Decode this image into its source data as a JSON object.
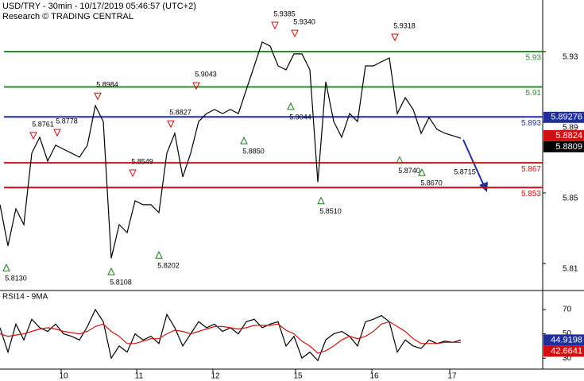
{
  "chart_data": [
    {
      "type": "line",
      "title": "USD/TRY - 30min - 10/17/2019 05:46:57 (UTC+2)",
      "subtitle": "Research © TRADING CENTRAL",
      "x": [
        0,
        5,
        10,
        15,
        20,
        25,
        30,
        35,
        40,
        45,
        50,
        55,
        60,
        65,
        70,
        75,
        80,
        85,
        90,
        95,
        100,
        105,
        110,
        115,
        120,
        125,
        130,
        135,
        140,
        145,
        150,
        155,
        160,
        165,
        170,
        175,
        180,
        185,
        190,
        195,
        200,
        205,
        210,
        215,
        220,
        225,
        230,
        235,
        240,
        245,
        250,
        255,
        260,
        265,
        270,
        275,
        280,
        285,
        290
      ],
      "values": [
        5.8433,
        5.82,
        5.841,
        5.832,
        5.8725,
        5.8815,
        5.868,
        5.877,
        5.8747,
        5.8725,
        5.8702,
        5.877,
        5.8994,
        5.8904,
        5.813,
        5.832,
        5.8275,
        5.8455,
        5.8433,
        5.8433,
        5.8388,
        5.8725,
        5.8837,
        5.859,
        5.8725,
        5.8904,
        5.8949,
        5.8972,
        5.8949,
        5.8972,
        5.8949,
        5.9084,
        5.9219,
        5.9354,
        5.9331,
        5.9219,
        5.9197,
        5.9287,
        5.9287,
        5.9197,
        5.856,
        5.9129,
        5.8904,
        5.8815,
        5.8949,
        5.8904,
        5.9219,
        5.9219,
        5.9242,
        5.9264,
        5.8949,
        5.9039,
        5.8972,
        5.8837,
        5.8927,
        5.886,
        5.8837,
        5.8824,
        5.8809
      ],
      "color": "#000000",
      "xlim": [
        0,
        341.5
      ],
      "xticks": [
        {
          "value": 38.5,
          "label": "10"
        },
        {
          "value": 86,
          "label": "11"
        },
        {
          "value": 134,
          "label": "12"
        },
        {
          "value": 186,
          "label": "15"
        },
        {
          "value": 234,
          "label": "16"
        },
        {
          "value": 283,
          "label": "17"
        }
      ],
      "ylim": [
        5.7947,
        5.9592
      ],
      "yticks": [
        5.81,
        5.85,
        5.89,
        5.93
      ],
      "levels": [
        {
          "value": 5.93,
          "color": "#2e8b2e"
        },
        {
          "value": 5.91,
          "color": "#2e8b2e"
        },
        {
          "value": 5.893,
          "color": "#1f2f9a"
        },
        {
          "value": 5.867,
          "color": "#d01010"
        },
        {
          "value": 5.853,
          "color": "#d01010"
        }
      ],
      "price_tags": [
        {
          "value": 5.89276,
          "color": "#1f2f9a"
        },
        {
          "value": 5.8824,
          "color": "#d01010"
        },
        {
          "value": 5.8809,
          "color": "#000000"
        }
      ],
      "annotations": [
        {
          "x": 4,
          "value": 5.813,
          "label": "5.8130",
          "marker": "up"
        },
        {
          "x": 21,
          "value": 5.8761,
          "label": "5.8761",
          "marker": "down"
        },
        {
          "x": 36,
          "value": 5.8778,
          "label": "5.8778",
          "marker": "down"
        },
        {
          "x": 61.5,
          "value": 5.8984,
          "label": "5.8984",
          "marker": "down"
        },
        {
          "x": 70,
          "value": 5.8108,
          "label": "5.8108",
          "marker": "up"
        },
        {
          "x": 83.5,
          "value": 5.8549,
          "label": "5.8549",
          "marker": "down"
        },
        {
          "x": 100,
          "value": 5.8202,
          "label": "5.8202",
          "marker": "up"
        },
        {
          "x": 107.5,
          "value": 5.8827,
          "label": "5.8827",
          "marker": "down"
        },
        {
          "x": 123.5,
          "value": 5.9043,
          "label": "5.9043",
          "marker": "down"
        },
        {
          "x": 153.5,
          "value": 5.885,
          "label": "5.8850",
          "marker": "up"
        },
        {
          "x": 173,
          "value": 5.9385,
          "label": "5.9385",
          "marker": "down"
        },
        {
          "x": 185.5,
          "value": 5.934,
          "label": "5.9340",
          "marker": "down"
        },
        {
          "x": 183,
          "value": 5.9044,
          "label": "5.9044",
          "marker": "up"
        },
        {
          "x": 202,
          "value": 5.851,
          "label": "5.8510",
          "marker": "up"
        },
        {
          "x": 248.5,
          "value": 5.9318,
          "label": "5.9318",
          "marker": "down"
        },
        {
          "x": 251.5,
          "value": 5.874,
          "label": "5.8740",
          "marker": "up"
        },
        {
          "x": 265.5,
          "value": 5.867,
          "label": "5.8670",
          "marker": "up"
        }
      ],
      "forecast": {
        "x": 292.5,
        "value": 5.8715,
        "label": "5.8715"
      }
    },
    {
      "type": "line",
      "title": "RSI14 - 9MA",
      "x": [
        0,
        5,
        10,
        15,
        20,
        25,
        30,
        35,
        40,
        45,
        50,
        55,
        60,
        65,
        70,
        75,
        80,
        85,
        90,
        95,
        100,
        105,
        110,
        115,
        120,
        125,
        130,
        135,
        140,
        145,
        150,
        155,
        160,
        165,
        170,
        175,
        180,
        185,
        190,
        195,
        200,
        205,
        210,
        215,
        220,
        225,
        230,
        235,
        240,
        245,
        250,
        255,
        260,
        265,
        270,
        275,
        280,
        285,
        290
      ],
      "series": [
        {
          "color": "#000000",
          "values": [
            55,
            35,
            58,
            45,
            62,
            55,
            52,
            58,
            50,
            48,
            45,
            56,
            70,
            60,
            30,
            40,
            35,
            50,
            45,
            48,
            42,
            66,
            55,
            40,
            50,
            60,
            55,
            58,
            52,
            55,
            50,
            60,
            62,
            55,
            58,
            60,
            40,
            48,
            30,
            35,
            28,
            45,
            50,
            52,
            48,
            40,
            60,
            62,
            65,
            60,
            35,
            45,
            40,
            38,
            45,
            42,
            44,
            43,
            45
          ]
        },
        {
          "color": "#d01010",
          "values": [
            50,
            48,
            49,
            50,
            52,
            54,
            55,
            54,
            52,
            51,
            50,
            52,
            56,
            58,
            52,
            48,
            42,
            42,
            44,
            46,
            46,
            50,
            53,
            52,
            50,
            52,
            54,
            56,
            56,
            55,
            54,
            55,
            57,
            57,
            57,
            58,
            53,
            50,
            44,
            40,
            34,
            36,
            40,
            45,
            48,
            46,
            48,
            52,
            58,
            60,
            56,
            52,
            46,
            42,
            42,
            42,
            43,
            43,
            43
          ]
        }
      ],
      "xlim": [
        0,
        341.5
      ],
      "ylim": [
        21,
        85
      ],
      "yticks": [
        30,
        50,
        70
      ],
      "price_tags": [
        {
          "value": 44.9198,
          "color": "#1f2f9a"
        },
        {
          "value": 42.6641,
          "color": "#d01010"
        }
      ]
    }
  ]
}
